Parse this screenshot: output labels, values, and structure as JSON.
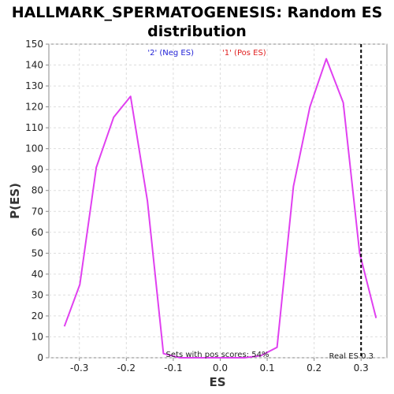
{
  "chart_data": {
    "type": "line",
    "title_line1": "HALLMARK_SPERMATOGENESIS: Random ES",
    "title_line2": "distribution",
    "xlabel": "ES",
    "ylabel": "P(ES)",
    "xlim": [
      -0.365,
      0.355
    ],
    "ylim": [
      0,
      150
    ],
    "x_ticks": [
      -0.3,
      -0.2,
      -0.1,
      0.0,
      0.1,
      0.2,
      0.3
    ],
    "x_tick_labels": [
      "-0.3",
      "-0.2",
      "-0.1",
      "0.0",
      "0.1",
      "0.2",
      "0.3"
    ],
    "y_ticks": [
      0,
      10,
      20,
      30,
      40,
      50,
      60,
      70,
      80,
      90,
      100,
      110,
      120,
      130,
      140,
      150
    ],
    "y_tick_labels": [
      "0",
      "10",
      "20",
      "30",
      "40",
      "50",
      "60",
      "70",
      "80",
      "90",
      "100",
      "110",
      "120",
      "130",
      "140",
      "150"
    ],
    "grid": true,
    "legend": [
      {
        "label": "'2' (Neg ES)",
        "color": "#1f1fd6"
      },
      {
        "label": "'1' (Pos ES)",
        "color": "#e01f1f"
      }
    ],
    "series": [
      {
        "color": "#e040f0",
        "x": [
          -0.332,
          -0.299,
          -0.264,
          -0.227,
          -0.191,
          -0.155,
          -0.121,
          -0.086,
          -0.052,
          -0.017,
          0.018,
          0.052,
          0.087,
          0.121,
          0.156,
          0.191,
          0.226,
          0.262,
          0.297,
          0.332
        ],
        "y": [
          15,
          35,
          91,
          115,
          125,
          75,
          2,
          0,
          0,
          0,
          0,
          0,
          1,
          5,
          82,
          120,
          143,
          122,
          50,
          19
        ]
      }
    ],
    "real_es": {
      "x": 0.3,
      "label": "Real ES 0.3",
      "color": "#000000"
    },
    "annotation": "Sets with pos scores: 54%"
  }
}
